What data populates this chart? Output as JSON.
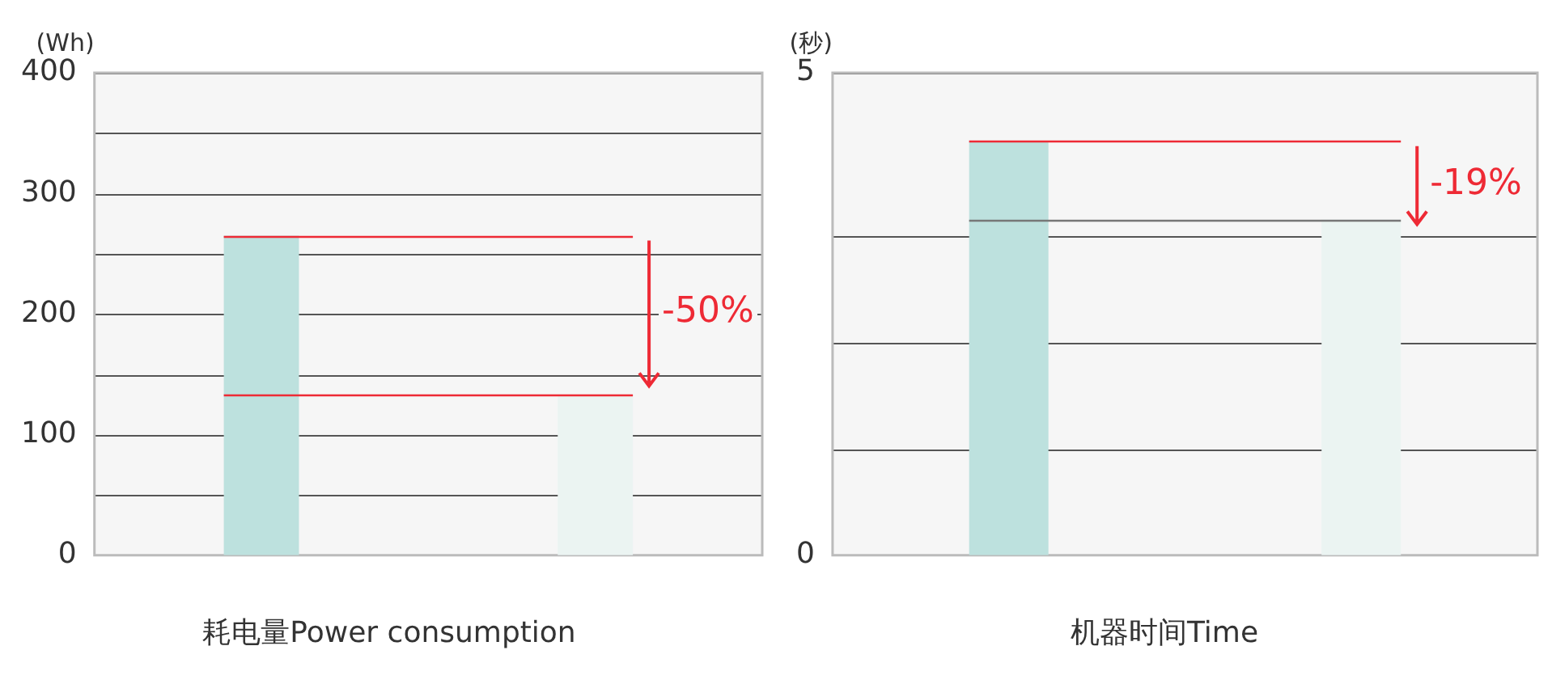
{
  "chart_data": [
    {
      "type": "bar",
      "title": "耗电量Power consumption",
      "ylabel": "(Wh)",
      "categories": [
        null,
        null
      ],
      "values": [
        265,
        133
      ],
      "colors": [
        "#bde1de",
        "#ebf4f2"
      ],
      "ylim": [
        0,
        400
      ],
      "yticks": [
        0,
        {
          "value": 50,
          "label": null
        },
        100,
        {
          "value": 150,
          "label": null
        },
        200,
        {
          "value": 250,
          "label": null
        },
        300,
        {
          "value": 350,
          "label": null
        },
        400
      ],
      "grid": "y",
      "tick_labels": "y",
      "legend": false,
      "annotations": [
        "-50%"
      ],
      "ref_lines": [
        {
          "axis": "y",
          "value": 265,
          "color": "#ee2a35"
        },
        {
          "axis": "y",
          "value": 133,
          "color": "#ee2a35"
        }
      ]
    },
    {
      "type": "bar",
      "title": "机器时间Time",
      "ylabel": "(秒)",
      "categories": [
        null,
        null
      ],
      "values": [
        4.29,
        3.48
      ],
      "colors": [
        "#bde1de",
        "#ebf4f2"
      ],
      "ylim": [
        0,
        5
      ],
      "yticks": [
        0,
        {
          "value": 1.1,
          "label": null
        },
        {
          "value": 2.2,
          "label": null
        },
        {
          "value": 3.3,
          "label": null
        },
        5
      ],
      "grid": "y",
      "tick_labels": "y",
      "legend": false,
      "annotations": [
        "-19%"
      ],
      "ref_lines": [
        {
          "axis": "y",
          "value": 4.29,
          "color": "#ee2a35"
        },
        {
          "axis": "y",
          "value": 3.48,
          "color": "#777777"
        }
      ]
    }
  ]
}
